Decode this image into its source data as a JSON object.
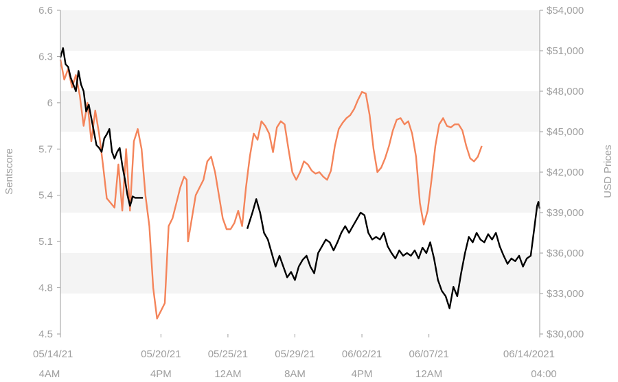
{
  "chart_data": {
    "type": "line",
    "title": "",
    "y_left_label": "Sentscore",
    "y_right_label": "USD Prices",
    "x_range": [
      "2021-05-14T04:00",
      "2021-06-14T04:00"
    ],
    "y_left_range": [
      4.5,
      6.6
    ],
    "y_right_range": [
      30000,
      54000
    ],
    "y_left_ticks": [
      "4.5",
      "4.8",
      "5.1",
      "5.4",
      "5.7",
      "6",
      "6.3",
      "6.6"
    ],
    "y_left_tick_values": [
      4.5,
      4.8,
      5.1,
      5.4,
      5.7,
      6.0,
      6.3,
      6.6
    ],
    "y_right_ticks": [
      "$30,000",
      "$33,000",
      "$36,000",
      "$39,000",
      "$42,000",
      "$45,000",
      "$48,000",
      "$51,000",
      "$54,000"
    ],
    "y_right_tick_values": [
      30000,
      33000,
      36000,
      39000,
      42000,
      45000,
      48000,
      51000,
      54000
    ],
    "x_ticks": [
      {
        "date": "05/14/21",
        "time": "4AM",
        "at": "2021-05-14T04:00"
      },
      {
        "date": "05/20/21",
        "time": "4PM",
        "at": "2021-05-20T16:00"
      },
      {
        "date": "05/25/21",
        "time": "12AM",
        "at": "2021-05-25T00:00"
      },
      {
        "date": "05/29/21",
        "time": "8AM",
        "at": "2021-05-29T08:00"
      },
      {
        "date": "06/02/21",
        "time": "4PM",
        "at": "2021-06-02T16:00"
      },
      {
        "date": "06/07/21",
        "time": "12AM",
        "at": "2021-06-07T00:00"
      },
      {
        "date": "06/14/2021",
        "time": "04:00",
        "at": "2021-06-14T04:00"
      }
    ],
    "grid": true,
    "colors": {
      "sentscore": "#f4845a",
      "price": "#000000",
      "axis": "#9e9e9e",
      "band": "#f4f4f4"
    },
    "series": [
      {
        "axis": "left",
        "color": "#f4845a",
        "points": [
          [
            "2021-05-14T04:00",
            6.28
          ],
          [
            "2021-05-14T10:00",
            6.15
          ],
          [
            "2021-05-14T16:00",
            6.22
          ],
          [
            "2021-05-14T22:00",
            6.1
          ],
          [
            "2021-05-15T04:00",
            6.18
          ],
          [
            "2021-05-15T10:00",
            6.05
          ],
          [
            "2021-05-15T16:00",
            5.85
          ],
          [
            "2021-05-15T22:00",
            6.0
          ],
          [
            "2021-05-16T04:00",
            5.75
          ],
          [
            "2021-05-16T10:00",
            5.95
          ],
          [
            "2021-05-16T16:00",
            5.8
          ],
          [
            "2021-05-16T22:00",
            5.6
          ],
          [
            "2021-05-17T04:00",
            5.38
          ],
          [
            "2021-05-17T10:00",
            5.35
          ],
          [
            "2021-05-17T16:00",
            5.32
          ],
          [
            "2021-05-17T22:00",
            5.6
          ],
          [
            "2021-05-18T04:00",
            5.3
          ],
          [
            "2021-05-18T10:00",
            5.7
          ],
          [
            "2021-05-18T16:00",
            5.3
          ],
          [
            "2021-05-18T22:00",
            5.75
          ],
          [
            "2021-05-19T04:00",
            5.83
          ],
          [
            "2021-05-19T10:00",
            5.7
          ],
          [
            "2021-05-19T16:00",
            5.4
          ],
          [
            "2021-05-19T22:00",
            5.2
          ],
          [
            "2021-05-20T04:00",
            4.8
          ],
          [
            "2021-05-20T10:00",
            4.6
          ],
          [
            "2021-05-20T16:00",
            4.65
          ],
          [
            "2021-05-20T22:00",
            4.7
          ],
          [
            "2021-05-21T04:00",
            5.2
          ],
          [
            "2021-05-21T10:00",
            5.25
          ],
          [
            "2021-05-21T16:00",
            5.35
          ],
          [
            "2021-05-21T22:00",
            5.45
          ],
          [
            "2021-05-22T04:00",
            5.52
          ],
          [
            "2021-05-22T08:00",
            5.5
          ],
          [
            "2021-05-22T10:00",
            5.1
          ],
          [
            "2021-05-22T16:00",
            5.25
          ],
          [
            "2021-05-22T22:00",
            5.4
          ],
          [
            "2021-05-23T04:00",
            5.45
          ],
          [
            "2021-05-23T10:00",
            5.5
          ],
          [
            "2021-05-23T16:00",
            5.62
          ],
          [
            "2021-05-23T22:00",
            5.65
          ],
          [
            "2021-05-24T04:00",
            5.55
          ],
          [
            "2021-05-24T10:00",
            5.4
          ],
          [
            "2021-05-24T16:00",
            5.25
          ],
          [
            "2021-05-24T22:00",
            5.18
          ],
          [
            "2021-05-25T04:00",
            5.18
          ],
          [
            "2021-05-25T10:00",
            5.22
          ],
          [
            "2021-05-25T16:00",
            5.3
          ],
          [
            "2021-05-25T22:00",
            5.2
          ],
          [
            "2021-05-26T04:00",
            5.45
          ],
          [
            "2021-05-26T10:00",
            5.65
          ],
          [
            "2021-05-26T16:00",
            5.8
          ],
          [
            "2021-05-26T22:00",
            5.76
          ],
          [
            "2021-05-27T04:00",
            5.88
          ],
          [
            "2021-05-27T10:00",
            5.85
          ],
          [
            "2021-05-27T16:00",
            5.8
          ],
          [
            "2021-05-27T22:00",
            5.68
          ],
          [
            "2021-05-28T04:00",
            5.84
          ],
          [
            "2021-05-28T10:00",
            5.88
          ],
          [
            "2021-05-28T16:00",
            5.86
          ],
          [
            "2021-05-28T22:00",
            5.7
          ],
          [
            "2021-05-29T04:00",
            5.55
          ],
          [
            "2021-05-29T10:00",
            5.5
          ],
          [
            "2021-05-29T16:00",
            5.55
          ],
          [
            "2021-05-29T22:00",
            5.62
          ],
          [
            "2021-05-30T04:00",
            5.6
          ],
          [
            "2021-05-30T10:00",
            5.56
          ],
          [
            "2021-05-30T16:00",
            5.54
          ],
          [
            "2021-05-30T22:00",
            5.55
          ],
          [
            "2021-05-31T04:00",
            5.52
          ],
          [
            "2021-05-31T10:00",
            5.5
          ],
          [
            "2021-05-31T16:00",
            5.56
          ],
          [
            "2021-05-31T22:00",
            5.72
          ],
          [
            "2021-06-01T04:00",
            5.83
          ],
          [
            "2021-06-01T10:00",
            5.87
          ],
          [
            "2021-06-01T16:00",
            5.9
          ],
          [
            "2021-06-01T22:00",
            5.92
          ],
          [
            "2021-06-02T04:00",
            5.96
          ],
          [
            "2021-06-02T10:00",
            6.02
          ],
          [
            "2021-06-02T16:00",
            6.07
          ],
          [
            "2021-06-02T22:00",
            6.06
          ],
          [
            "2021-06-03T04:00",
            5.92
          ],
          [
            "2021-06-03T10:00",
            5.7
          ],
          [
            "2021-06-03T16:00",
            5.55
          ],
          [
            "2021-06-03T22:00",
            5.58
          ],
          [
            "2021-06-04T04:00",
            5.64
          ],
          [
            "2021-06-04T10:00",
            5.72
          ],
          [
            "2021-06-04T16:00",
            5.82
          ],
          [
            "2021-06-04T22:00",
            5.89
          ],
          [
            "2021-06-05T04:00",
            5.9
          ],
          [
            "2021-06-05T10:00",
            5.86
          ],
          [
            "2021-06-05T16:00",
            5.88
          ],
          [
            "2021-06-05T22:00",
            5.8
          ],
          [
            "2021-06-06T04:00",
            5.65
          ],
          [
            "2021-06-06T10:00",
            5.35
          ],
          [
            "2021-06-06T16:00",
            5.21
          ],
          [
            "2021-06-06T22:00",
            5.3
          ],
          [
            "2021-06-07T04:00",
            5.5
          ],
          [
            "2021-06-07T10:00",
            5.72
          ],
          [
            "2021-06-07T16:00",
            5.86
          ],
          [
            "2021-06-07T22:00",
            5.9
          ],
          [
            "2021-06-08T04:00",
            5.85
          ],
          [
            "2021-06-08T10:00",
            5.84
          ],
          [
            "2021-06-08T16:00",
            5.86
          ],
          [
            "2021-06-08T22:00",
            5.86
          ],
          [
            "2021-06-09T04:00",
            5.82
          ],
          [
            "2021-06-09T10:00",
            5.72
          ],
          [
            "2021-06-09T16:00",
            5.64
          ],
          [
            "2021-06-09T22:00",
            5.62
          ],
          [
            "2021-06-10T04:00",
            5.65
          ],
          [
            "2021-06-10T10:00",
            5.72
          ]
        ]
      },
      {
        "axis": "right",
        "color": "#000000",
        "points": [
          [
            "2021-05-14T04:00",
            50500
          ],
          [
            "2021-05-14T08:00",
            51200
          ],
          [
            "2021-05-14T12:00",
            50000
          ],
          [
            "2021-05-14T16:00",
            49800
          ],
          [
            "2021-05-14T20:00",
            49000
          ],
          [
            "2021-05-15T00:00",
            48500
          ],
          [
            "2021-05-15T04:00",
            48000
          ],
          [
            "2021-05-15T08:00",
            49500
          ],
          [
            "2021-05-15T12:00",
            48500
          ],
          [
            "2021-05-15T16:00",
            48000
          ],
          [
            "2021-05-15T20:00",
            46500
          ],
          [
            "2021-05-16T00:00",
            47000
          ],
          [
            "2021-05-16T04:00",
            46000
          ],
          [
            "2021-05-16T08:00",
            45000
          ],
          [
            "2021-05-16T12:00",
            44000
          ],
          [
            "2021-05-16T16:00",
            43800
          ],
          [
            "2021-05-16T20:00",
            43500
          ],
          [
            "2021-05-17T00:00",
            44500
          ],
          [
            "2021-05-17T04:00",
            44800
          ],
          [
            "2021-05-17T08:00",
            45200
          ],
          [
            "2021-05-17T12:00",
            43500
          ],
          [
            "2021-05-17T16:00",
            43000
          ],
          [
            "2021-05-17T20:00",
            43500
          ],
          [
            "2021-05-18T00:00",
            43800
          ],
          [
            "2021-05-18T04:00",
            42500
          ],
          [
            "2021-05-18T08:00",
            41500
          ],
          [
            "2021-05-18T12:00",
            40300
          ],
          [
            "2021-05-18T16:00",
            39500
          ],
          [
            "2021-05-18T18:00",
            39800
          ],
          [
            "2021-05-18T20:00",
            40200
          ],
          [
            "2021-05-19T00:00",
            40100
          ],
          [
            "2021-05-19T12:00",
            40100
          ],
          [
            "2021-05-26T06:00",
            37800
          ],
          [
            "2021-05-26T14:00",
            39000
          ],
          [
            "2021-05-26T20:00",
            40000
          ],
          [
            "2021-05-27T02:00",
            39000
          ],
          [
            "2021-05-27T08:00",
            37500
          ],
          [
            "2021-05-27T14:00",
            37000
          ],
          [
            "2021-05-27T20:00",
            36000
          ],
          [
            "2021-05-28T02:00",
            35000
          ],
          [
            "2021-05-28T08:00",
            35800
          ],
          [
            "2021-05-28T14:00",
            35000
          ],
          [
            "2021-05-28T20:00",
            34200
          ],
          [
            "2021-05-29T02:00",
            34600
          ],
          [
            "2021-05-29T08:00",
            34000
          ],
          [
            "2021-05-29T14:00",
            35000
          ],
          [
            "2021-05-29T20:00",
            35500
          ],
          [
            "2021-05-30T02:00",
            35800
          ],
          [
            "2021-05-30T08:00",
            35000
          ],
          [
            "2021-05-30T14:00",
            34500
          ],
          [
            "2021-05-30T20:00",
            36000
          ],
          [
            "2021-05-31T02:00",
            36500
          ],
          [
            "2021-05-31T08:00",
            37000
          ],
          [
            "2021-05-31T14:00",
            36800
          ],
          [
            "2021-05-31T20:00",
            36200
          ],
          [
            "2021-06-01T02:00",
            36800
          ],
          [
            "2021-06-01T08:00",
            37500
          ],
          [
            "2021-06-01T14:00",
            38000
          ],
          [
            "2021-06-01T20:00",
            37500
          ],
          [
            "2021-06-02T02:00",
            38000
          ],
          [
            "2021-06-02T08:00",
            38500
          ],
          [
            "2021-06-02T14:00",
            39000
          ],
          [
            "2021-06-02T20:00",
            38800
          ],
          [
            "2021-06-03T02:00",
            37500
          ],
          [
            "2021-06-03T08:00",
            37000
          ],
          [
            "2021-06-03T14:00",
            37200
          ],
          [
            "2021-06-03T20:00",
            37000
          ],
          [
            "2021-06-04T02:00",
            37500
          ],
          [
            "2021-06-04T08:00",
            36500
          ],
          [
            "2021-06-04T14:00",
            36000
          ],
          [
            "2021-06-04T20:00",
            35600
          ],
          [
            "2021-06-05T02:00",
            36200
          ],
          [
            "2021-06-05T08:00",
            35800
          ],
          [
            "2021-06-05T14:00",
            36000
          ],
          [
            "2021-06-05T20:00",
            35800
          ],
          [
            "2021-06-06T02:00",
            36200
          ],
          [
            "2021-06-06T08:00",
            35600
          ],
          [
            "2021-06-06T14:00",
            36400
          ],
          [
            "2021-06-06T20:00",
            36000
          ],
          [
            "2021-06-07T02:00",
            36800
          ],
          [
            "2021-06-07T08:00",
            35600
          ],
          [
            "2021-06-07T14:00",
            34000
          ],
          [
            "2021-06-07T20:00",
            33200
          ],
          [
            "2021-06-08T02:00",
            32800
          ],
          [
            "2021-06-08T08:00",
            31900
          ],
          [
            "2021-06-08T14:00",
            33500
          ],
          [
            "2021-06-08T20:00",
            32800
          ],
          [
            "2021-06-09T02:00",
            34500
          ],
          [
            "2021-06-09T08:00",
            36000
          ],
          [
            "2021-06-09T14:00",
            37200
          ],
          [
            "2021-06-09T20:00",
            36800
          ],
          [
            "2021-06-10T02:00",
            37500
          ],
          [
            "2021-06-10T08:00",
            37000
          ],
          [
            "2021-06-10T14:00",
            36800
          ],
          [
            "2021-06-10T20:00",
            37400
          ],
          [
            "2021-06-11T02:00",
            37000
          ],
          [
            "2021-06-11T08:00",
            37500
          ],
          [
            "2021-06-11T14:00",
            36500
          ],
          [
            "2021-06-11T20:00",
            35800
          ],
          [
            "2021-06-12T02:00",
            35200
          ],
          [
            "2021-06-12T08:00",
            35600
          ],
          [
            "2021-06-12T14:00",
            35400
          ],
          [
            "2021-06-12T20:00",
            35800
          ],
          [
            "2021-06-13T02:00",
            35000
          ],
          [
            "2021-06-13T08:00",
            35600
          ],
          [
            "2021-06-13T14:00",
            35800
          ],
          [
            "2021-06-13T20:00",
            38000
          ],
          [
            "2021-06-14T00:00",
            39500
          ],
          [
            "2021-06-14T02:00",
            39800
          ],
          [
            "2021-06-14T04:00",
            39300
          ]
        ]
      }
    ]
  }
}
